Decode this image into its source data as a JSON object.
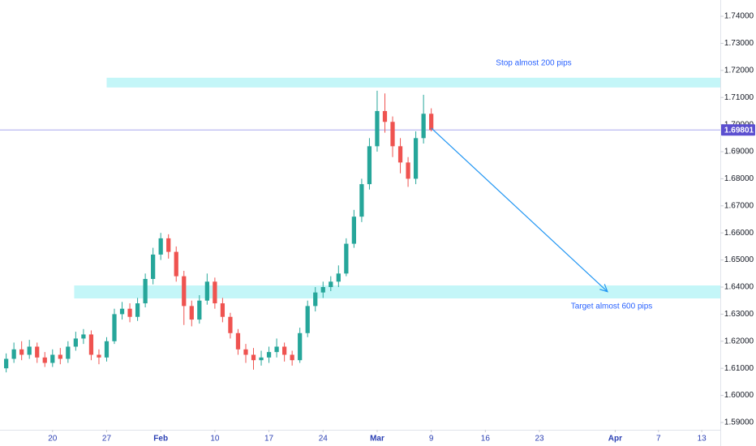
{
  "chart_data": {
    "type": "candlestick",
    "x": [
      -6,
      -5,
      -4,
      -3,
      -2,
      -1,
      0,
      1,
      2,
      3,
      4,
      5,
      6,
      7,
      8,
      9,
      10,
      11,
      12,
      13,
      14,
      15,
      16,
      17,
      18,
      19,
      20,
      21,
      22,
      23,
      24,
      25,
      26,
      27,
      28,
      29,
      30,
      31,
      32,
      33,
      34,
      35,
      36,
      37,
      38,
      39,
      40,
      41,
      42,
      43,
      44,
      45,
      46,
      47,
      48,
      49
    ],
    "open": [
      1.61,
      1.6135,
      1.617,
      1.615,
      1.618,
      1.614,
      1.612,
      1.615,
      1.6135,
      1.618,
      1.621,
      1.6225,
      1.615,
      1.614,
      1.62,
      1.63,
      1.632,
      1.629,
      1.634,
      1.643,
      1.652,
      1.658,
      1.653,
      1.644,
      1.633,
      1.628,
      1.635,
      1.642,
      1.634,
      1.629,
      1.623,
      1.617,
      1.615,
      1.613,
      1.614,
      1.616,
      1.618,
      1.615,
      1.613,
      1.623,
      1.633,
      1.638,
      1.64,
      1.642,
      1.645,
      1.656,
      1.666,
      1.678,
      1.692,
      1.705,
      1.701,
      1.692,
      1.686,
      1.68,
      1.695,
      1.704
    ],
    "high": [
      1.6155,
      1.6195,
      1.62,
      1.6205,
      1.6195,
      1.616,
      1.617,
      1.6175,
      1.62,
      1.6235,
      1.6245,
      1.624,
      1.617,
      1.6215,
      1.632,
      1.6345,
      1.634,
      1.636,
      1.645,
      1.6545,
      1.66,
      1.6595,
      1.655,
      1.646,
      1.635,
      1.637,
      1.645,
      1.6435,
      1.636,
      1.6305,
      1.6245,
      1.619,
      1.6175,
      1.6165,
      1.618,
      1.621,
      1.6195,
      1.6165,
      1.625,
      1.635,
      1.64,
      1.642,
      1.644,
      1.648,
      1.658,
      1.6685,
      1.68,
      1.695,
      1.7125,
      1.7115,
      1.703,
      1.695,
      1.688,
      1.6975,
      1.711,
      1.706
    ],
    "low": [
      1.6085,
      1.612,
      1.613,
      1.6135,
      1.612,
      1.6105,
      1.6105,
      1.6115,
      1.612,
      1.6165,
      1.619,
      1.613,
      1.6115,
      1.6125,
      1.619,
      1.628,
      1.627,
      1.6275,
      1.6325,
      1.641,
      1.65,
      1.6505,
      1.642,
      1.626,
      1.6255,
      1.6265,
      1.6335,
      1.632,
      1.627,
      1.621,
      1.615,
      1.612,
      1.6095,
      1.611,
      1.612,
      1.614,
      1.6125,
      1.611,
      1.612,
      1.6215,
      1.631,
      1.636,
      1.6385,
      1.64,
      1.644,
      1.6545,
      1.664,
      1.676,
      1.69,
      1.697,
      1.688,
      1.682,
      1.677,
      1.678,
      1.693,
      1.6975
    ],
    "close": [
      1.6135,
      1.617,
      1.615,
      1.618,
      1.614,
      1.612,
      1.615,
      1.6135,
      1.618,
      1.621,
      1.6225,
      1.615,
      1.614,
      1.62,
      1.63,
      1.632,
      1.629,
      1.634,
      1.643,
      1.652,
      1.658,
      1.653,
      1.644,
      1.633,
      1.628,
      1.635,
      1.642,
      1.634,
      1.629,
      1.623,
      1.617,
      1.615,
      1.613,
      1.614,
      1.616,
      1.618,
      1.615,
      1.613,
      1.623,
      1.633,
      1.638,
      1.64,
      1.642,
      1.645,
      1.656,
      1.666,
      1.678,
      1.692,
      1.705,
      1.701,
      1.692,
      1.686,
      1.68,
      1.695,
      1.704,
      1.69801
    ],
    "up_color": "#26a69a",
    "down_color": "#ef5350",
    "xlim": [
      -6.8,
      86.4
    ],
    "xticks": [
      {
        "value": 0,
        "label": "20"
      },
      {
        "value": 7,
        "label": "27"
      },
      {
        "value": 14,
        "label": "Feb"
      },
      {
        "value": 21,
        "label": "10"
      },
      {
        "value": 28,
        "label": "17"
      },
      {
        "value": 35,
        "label": "24"
      },
      {
        "value": 42,
        "label": "Mar"
      },
      {
        "value": 49,
        "label": "9"
      },
      {
        "value": 56,
        "label": "16"
      },
      {
        "value": 63,
        "label": "23"
      },
      {
        "value": 72.8,
        "label": "Apr"
      },
      {
        "value": 78.4,
        "label": "7"
      },
      {
        "value": 84,
        "label": "13"
      }
    ],
    "ylim": [
      1.5873,
      1.746
    ],
    "yticks": [
      {
        "value": 1.59,
        "label": "1.59000"
      },
      {
        "value": 1.6,
        "label": "1.60000"
      },
      {
        "value": 1.61,
        "label": "1.61000"
      },
      {
        "value": 1.62,
        "label": "1.62000"
      },
      {
        "value": 1.63,
        "label": "1.63000"
      },
      {
        "value": 1.64,
        "label": "1.64000"
      },
      {
        "value": 1.65,
        "label": "1.65000"
      },
      {
        "value": 1.66,
        "label": "1.66000"
      },
      {
        "value": 1.67,
        "label": "1.67000"
      },
      {
        "value": 1.68,
        "label": "1.68000"
      },
      {
        "value": 1.69,
        "label": "1.69000"
      },
      {
        "value": 1.7,
        "label": "1.70000"
      },
      {
        "value": 1.71,
        "label": "1.71000"
      },
      {
        "value": 1.72,
        "label": "1.72000"
      },
      {
        "value": 1.73,
        "label": "1.73000"
      },
      {
        "value": 1.74,
        "label": "1.74000"
      }
    ],
    "grid": false,
    "last_price": 1.69801,
    "last_price_color": "#5b4fd0",
    "zones": [
      {
        "x_start": 7,
        "y_low": 1.7137,
        "y_high": 1.7173,
        "color": "#c4f6f8",
        "label": "Stop almost 200 pips"
      },
      {
        "x_start": 2.8,
        "y_low": 1.6358,
        "y_high": 1.6406,
        "color": "#c4f6f8",
        "label": "Target almost 600 pips"
      }
    ],
    "arrow": {
      "x": [
        49,
        71.8
      ],
      "y": [
        1.6987,
        1.6383
      ],
      "color": "#2196f3"
    }
  }
}
